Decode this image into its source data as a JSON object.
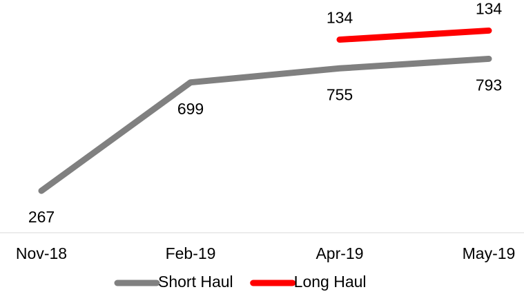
{
  "chart_data": {
    "type": "line",
    "categories": [
      "Nov-18",
      "Feb-19",
      "Apr-19",
      "May-19"
    ],
    "series": [
      {
        "name": "Short Haul",
        "color": "#808080",
        "values": [
          267,
          699,
          755,
          793
        ]
      },
      {
        "name": "Long Haul",
        "color": "#ff0000",
        "axis": "y2",
        "values": [
          null,
          null,
          133.6,
          134.4
        ],
        "value_labels": [
          null,
          null,
          "134",
          "134"
        ]
      }
    ],
    "ylim": [
      100,
      1000
    ],
    "y2lim": [
      116.5,
      136.5
    ],
    "grid": false,
    "legend": "bottom"
  }
}
